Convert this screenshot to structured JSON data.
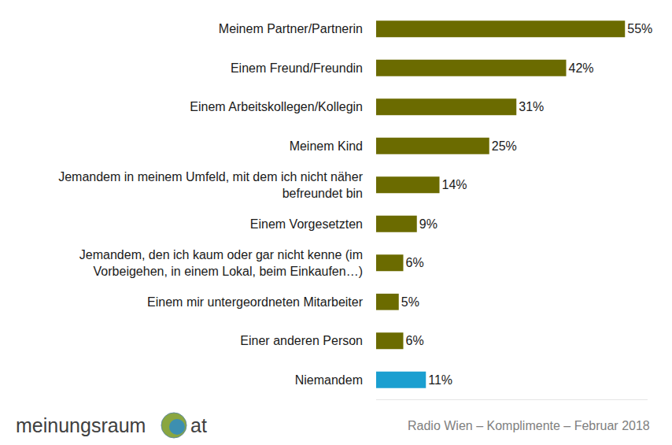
{
  "chart_data": {
    "type": "bar",
    "orientation": "horizontal",
    "categories": [
      "Meinem Partner/Partnerin",
      "Einem Freund/Freundin",
      "Einem Arbeitskollegen/Kollegin",
      "Meinem Kind",
      "Jemandem in meinem Umfeld, mit dem ich nicht näher befreundet bin",
      "Einem Vorgesetzten",
      "Jemandem, den ich kaum oder gar nicht kenne (im Vorbeigehen, in einem Lokal, beim Einkaufen…)",
      "Einem mir untergeordneten Mitarbeiter",
      "Einer anderen Person",
      "Niemandem"
    ],
    "values": [
      55,
      42,
      31,
      25,
      14,
      9,
      6,
      5,
      6,
      11
    ],
    "value_labels": [
      "55%",
      "42%",
      "31%",
      "25%",
      "14%",
      "9%",
      "6%",
      "5%",
      "6%",
      "11%"
    ],
    "colors": [
      "#6b6b00",
      "#6b6b00",
      "#6b6b00",
      "#6b6b00",
      "#6b6b00",
      "#6b6b00",
      "#6b6b00",
      "#6b6b00",
      "#6b6b00",
      "#1b9fd0"
    ],
    "xlim": [
      0,
      60
    ],
    "data_labels": true,
    "tick_labels": "y",
    "grid": false,
    "footer": {
      "logo": [
        "meinungsraum",
        "at"
      ],
      "source": "Radio Wien – Komplimente – Februar 2018"
    }
  }
}
